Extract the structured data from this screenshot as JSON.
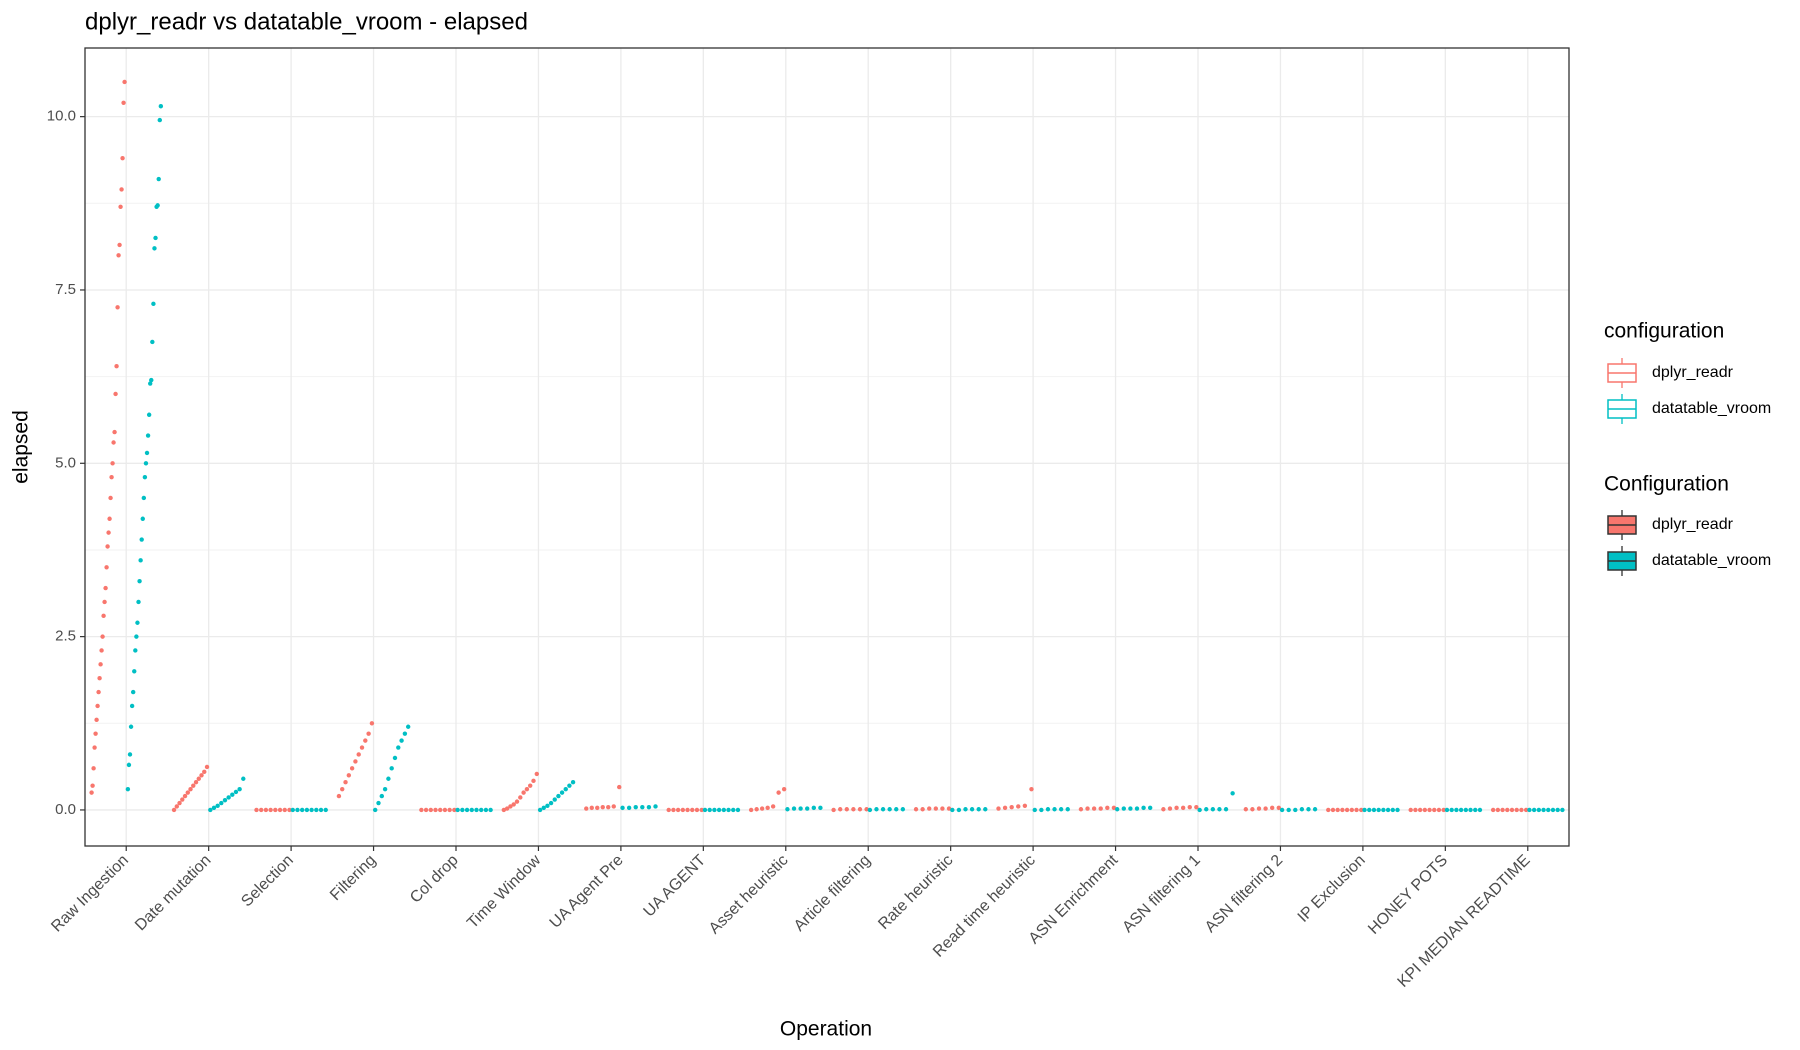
{
  "chart_data": {
    "type": "strip",
    "title": "dplyr_readr vs datatable_vroom - elapsed",
    "x_label": "Operation",
    "y_label": "elapsed",
    "legend_title": "configuration",
    "legend2_title": "Configuration",
    "categories": [
      "Raw Ingestion",
      "Date mutation",
      "Selection",
      "Filtering",
      "Col drop",
      "Time Window",
      "UA Agent Pre",
      "UA AGENT",
      "Asset heuristic",
      "Article filtering",
      "Rate heuristic",
      "Read time heuristic",
      "ASN Enrichment",
      "ASN filtering 1",
      "ASN filtering 2",
      "IP Exclusion",
      "HONEY POTS",
      "KPI MEDIAN READTIME"
    ],
    "ylim": [
      -0.52,
      10.99
    ],
    "yticks": [
      {
        "value": 0,
        "label": "0.0"
      },
      {
        "value": 2.5,
        "label": "2.5"
      },
      {
        "value": 5,
        "label": "5.0"
      },
      {
        "value": 7.5,
        "label": "7.5"
      },
      {
        "value": 10,
        "label": "10.0"
      }
    ],
    "minor_yticks": [
      1.25,
      3.75,
      6.25,
      8.75
    ],
    "grid": true,
    "series": [
      {
        "name": "dplyr_readr",
        "color": "#F8766D",
        "values": [
          [
            0.25,
            0.35,
            0.6,
            0.9,
            1.1,
            1.3,
            1.5,
            1.7,
            1.9,
            2.1,
            2.3,
            2.5,
            2.8,
            3.0,
            3.2,
            3.5,
            3.8,
            4.0,
            4.2,
            4.5,
            4.8,
            5.0,
            5.3,
            5.45,
            6.0,
            6.4,
            7.25,
            8.0,
            8.15,
            8.7,
            8.95,
            9.4,
            10.2,
            10.5
          ],
          [
            0.0,
            0.05,
            0.1,
            0.15,
            0.2,
            0.25,
            0.3,
            0.35,
            0.4,
            0.45,
            0.5,
            0.55,
            0.62
          ],
          [
            0.0,
            0.0,
            0.0,
            0.0,
            0.0,
            0.0,
            0.0,
            0.0
          ],
          [
            0.2,
            0.3,
            0.4,
            0.5,
            0.6,
            0.7,
            0.8,
            0.9,
            1.0,
            1.1,
            1.25
          ],
          [
            0.0,
            0.0,
            0.0,
            0.0,
            0.0,
            0.0,
            0.0,
            0.0
          ],
          [
            0.0,
            0.02,
            0.05,
            0.08,
            0.12,
            0.18,
            0.25,
            0.3,
            0.35,
            0.42,
            0.52
          ],
          [
            0.02,
            0.03,
            0.03,
            0.04,
            0.04,
            0.05,
            0.33
          ],
          [
            0.0,
            0.0,
            0.0,
            0.0,
            0.0,
            0.0,
            0.0,
            0.0
          ],
          [
            0.0,
            0.01,
            0.02,
            0.03,
            0.05,
            0.25,
            0.3
          ],
          [
            0.0,
            0.01,
            0.01,
            0.01,
            0.01,
            0.01
          ],
          [
            0.01,
            0.01,
            0.02,
            0.02,
            0.02,
            0.02
          ],
          [
            0.02,
            0.03,
            0.04,
            0.05,
            0.06,
            0.3
          ],
          [
            0.01,
            0.02,
            0.02,
            0.02,
            0.03,
            0.03
          ],
          [
            0.01,
            0.02,
            0.03,
            0.03,
            0.04,
            0.04
          ],
          [
            0.01,
            0.01,
            0.02,
            0.02,
            0.03,
            0.03
          ],
          [
            0.0,
            0.0,
            0.0,
            0.0,
            0.0,
            0.0,
            0.0,
            0.0
          ],
          [
            0.0,
            0.0,
            0.0,
            0.0,
            0.0,
            0.0,
            0.0,
            0.0
          ],
          [
            0.0,
            0.0,
            0.0,
            0.0,
            0.0,
            0.0,
            0.0,
            0.0
          ]
        ]
      },
      {
        "name": "datatable_vroom",
        "color": "#00BFC4",
        "values": [
          [
            0.3,
            0.65,
            0.8,
            1.2,
            1.5,
            1.7,
            2.0,
            2.3,
            2.5,
            2.7,
            3.0,
            3.3,
            3.6,
            3.9,
            4.2,
            4.5,
            4.8,
            5.0,
            5.15,
            5.4,
            5.7,
            6.15,
            6.2,
            6.75,
            7.3,
            8.1,
            8.25,
            8.7,
            8.72,
            9.1,
            9.95,
            10.15
          ],
          [
            0.0,
            0.03,
            0.06,
            0.1,
            0.14,
            0.18,
            0.22,
            0.26,
            0.3,
            0.45
          ],
          [
            0.0,
            0.0,
            0.0,
            0.0,
            0.0,
            0.0,
            0.0,
            0.0
          ],
          [
            0.0,
            0.1,
            0.2,
            0.3,
            0.45,
            0.6,
            0.75,
            0.9,
            1.0,
            1.1,
            1.2
          ],
          [
            0.0,
            0.0,
            0.0,
            0.0,
            0.0,
            0.0,
            0.0,
            0.0
          ],
          [
            0.0,
            0.03,
            0.06,
            0.1,
            0.15,
            0.2,
            0.25,
            0.3,
            0.35,
            0.4
          ],
          [
            0.03,
            0.03,
            0.04,
            0.04,
            0.04,
            0.05
          ],
          [
            0.0,
            0.0,
            0.0,
            0.0,
            0.0,
            0.0,
            0.0,
            0.0
          ],
          [
            0.01,
            0.02,
            0.02,
            0.02,
            0.03,
            0.03
          ],
          [
            0.0,
            0.01,
            0.01,
            0.01,
            0.01,
            0.01
          ],
          [
            0.0,
            0.0,
            0.01,
            0.01,
            0.01,
            0.01
          ],
          [
            0.0,
            0.0,
            0.01,
            0.01,
            0.01,
            0.01
          ],
          [
            0.01,
            0.02,
            0.02,
            0.02,
            0.03,
            0.03
          ],
          [
            0.0,
            0.01,
            0.01,
            0.01,
            0.01,
            0.24
          ],
          [
            0.0,
            0.0,
            0.0,
            0.01,
            0.01,
            0.01
          ],
          [
            0.0,
            0.0,
            0.0,
            0.0,
            0.0,
            0.0,
            0.0,
            0.0
          ],
          [
            0.0,
            0.0,
            0.0,
            0.0,
            0.0,
            0.0,
            0.0,
            0.0
          ],
          [
            0.0,
            0.0,
            0.0,
            0.0,
            0.0,
            0.0,
            0.0,
            0.0
          ]
        ]
      }
    ]
  }
}
